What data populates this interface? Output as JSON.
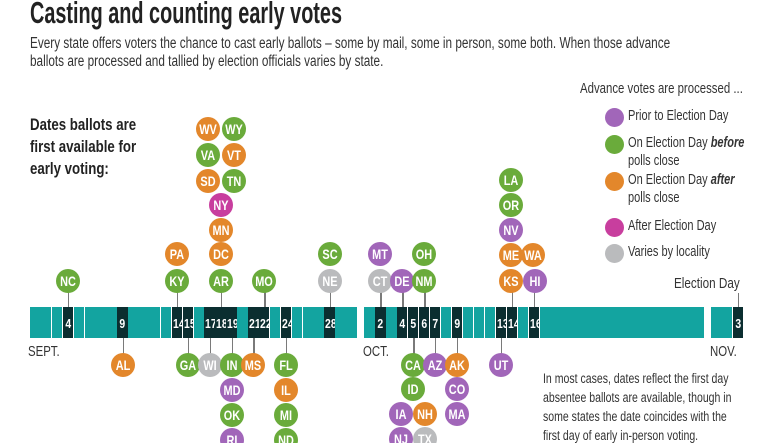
{
  "title": "Casting and counting early votes",
  "subtitle_lines": [
    "Every state offers voters the chance to cast early ballots – some by mail, some in person, some both. When those advance",
    "ballots are processed and tallied by election officials varies by state."
  ],
  "intro_lines": [
    "Dates ballots are",
    "first available for",
    "early voting:"
  ],
  "legend": {
    "title": "Advance votes are processed ...",
    "items": [
      {
        "key": "prior",
        "label_lines": [
          "Prior to Election Day"
        ],
        "color": "#a166b9"
      },
      {
        "key": "before",
        "label_lines": [
          "On Election Day before",
          "polls close"
        ],
        "emphasis": "before",
        "color": "#6aab3b"
      },
      {
        "key": "after",
        "label_lines": [
          "On Election Day after",
          "polls close"
        ],
        "emphasis": "after",
        "color": "#e3872b"
      },
      {
        "key": "afterday",
        "label_lines": [
          "After Election Day"
        ],
        "color": "#c83e9e"
      },
      {
        "key": "varies",
        "label_lines": [
          "Varies by locality"
        ],
        "color": "#babbbd"
      }
    ]
  },
  "timeline": {
    "months": [
      {
        "label": "SEPT.",
        "days": 30,
        "marked": [
          4,
          9,
          14,
          15,
          17,
          18,
          19,
          21,
          22,
          24,
          28
        ]
      },
      {
        "label": "OCT.",
        "days": 31,
        "marked": [
          2,
          4,
          5,
          6,
          7,
          9,
          13,
          14,
          16
        ]
      },
      {
        "label": "NOV.",
        "days": 3,
        "marked": [
          3
        ]
      }
    ],
    "election_day_label": "Election Day"
  },
  "states": [
    {
      "code": "NC",
      "cat": "before",
      "month": "SEPT.",
      "day": 4
    },
    {
      "code": "AL",
      "cat": "after",
      "month": "SEPT.",
      "day": 9
    },
    {
      "code": "KY",
      "cat": "before",
      "month": "SEPT.",
      "day": 14
    },
    {
      "code": "PA",
      "cat": "after",
      "month": "SEPT.",
      "day": 14
    },
    {
      "code": "GA",
      "cat": "before",
      "month": "SEPT.",
      "day": 15
    },
    {
      "code": "WI",
      "cat": "varies",
      "month": "SEPT.",
      "day": 17
    },
    {
      "code": "AR",
      "cat": "before",
      "month": "SEPT.",
      "day": 18
    },
    {
      "code": "DC",
      "cat": "after",
      "month": "SEPT.",
      "day": 18
    },
    {
      "code": "MN",
      "cat": "after",
      "month": "SEPT.",
      "day": 18
    },
    {
      "code": "NY",
      "cat": "afterday",
      "month": "SEPT.",
      "day": 18
    },
    {
      "code": "SD",
      "cat": "after",
      "month": "SEPT.",
      "day": 18
    },
    {
      "code": "TN",
      "cat": "before",
      "month": "SEPT.",
      "day": 18
    },
    {
      "code": "VA",
      "cat": "before",
      "month": "SEPT.",
      "day": 18
    },
    {
      "code": "VT",
      "cat": "after",
      "month": "SEPT.",
      "day": 18
    },
    {
      "code": "WV",
      "cat": "after",
      "month": "SEPT.",
      "day": 18
    },
    {
      "code": "WY",
      "cat": "before",
      "month": "SEPT.",
      "day": 18
    },
    {
      "code": "IN",
      "cat": "before",
      "month": "SEPT.",
      "day": 19
    },
    {
      "code": "MD",
      "cat": "prior",
      "month": "SEPT.",
      "day": 19
    },
    {
      "code": "OK",
      "cat": "before",
      "month": "SEPT.",
      "day": 19
    },
    {
      "code": "RI",
      "cat": "prior",
      "month": "SEPT.",
      "day": 19
    },
    {
      "code": "MS",
      "cat": "after",
      "month": "SEPT.",
      "day": 21
    },
    {
      "code": "MO",
      "cat": "before",
      "month": "SEPT.",
      "day": 22
    },
    {
      "code": "FL",
      "cat": "before",
      "month": "SEPT.",
      "day": 24
    },
    {
      "code": "IL",
      "cat": "after",
      "month": "SEPT.",
      "day": 24
    },
    {
      "code": "MI",
      "cat": "before",
      "month": "SEPT.",
      "day": 24
    },
    {
      "code": "ND",
      "cat": "before",
      "month": "SEPT.",
      "day": 24
    },
    {
      "code": "NE",
      "cat": "varies",
      "month": "SEPT.",
      "day": 28
    },
    {
      "code": "SC",
      "cat": "before",
      "month": "SEPT.",
      "day": 28
    },
    {
      "code": "CT",
      "cat": "varies",
      "month": "OCT.",
      "day": 2
    },
    {
      "code": "MT",
      "cat": "prior",
      "month": "OCT.",
      "day": 2
    },
    {
      "code": "DE",
      "cat": "prior",
      "month": "OCT.",
      "day": 4
    },
    {
      "code": "CA",
      "cat": "before",
      "month": "OCT.",
      "day": 5
    },
    {
      "code": "ID",
      "cat": "before",
      "month": "OCT.",
      "day": 5
    },
    {
      "code": "IA",
      "cat": "prior",
      "month": "OCT.",
      "day": 5
    },
    {
      "code": "NH",
      "cat": "after",
      "month": "OCT.",
      "day": 5
    },
    {
      "code": "NJ",
      "cat": "prior",
      "month": "OCT.",
      "day": 5
    },
    {
      "code": "TX",
      "cat": "varies",
      "month": "OCT.",
      "day": 5
    },
    {
      "code": "NM",
      "cat": "before",
      "month": "OCT.",
      "day": 6
    },
    {
      "code": "OH",
      "cat": "before",
      "month": "OCT.",
      "day": 6
    },
    {
      "code": "AZ",
      "cat": "prior",
      "month": "OCT.",
      "day": 7
    },
    {
      "code": "AK",
      "cat": "after",
      "month": "OCT.",
      "day": 9
    },
    {
      "code": "CO",
      "cat": "prior",
      "month": "OCT.",
      "day": 9
    },
    {
      "code": "MA",
      "cat": "prior",
      "month": "OCT.",
      "day": 9
    },
    {
      "code": "UT",
      "cat": "prior",
      "month": "OCT.",
      "day": 13
    },
    {
      "code": "KS",
      "cat": "after",
      "month": "OCT.",
      "day": 14
    },
    {
      "code": "ME",
      "cat": "after",
      "month": "OCT.",
      "day": 14
    },
    {
      "code": "NV",
      "cat": "prior",
      "month": "OCT.",
      "day": 14
    },
    {
      "code": "OR",
      "cat": "before",
      "month": "OCT.",
      "day": 14
    },
    {
      "code": "LA",
      "cat": "before",
      "month": "OCT.",
      "day": 14
    },
    {
      "code": "HI",
      "cat": "prior",
      "month": "OCT.",
      "day": 16
    },
    {
      "code": "WA",
      "cat": "after",
      "month": "OCT.",
      "day": 16
    }
  ],
  "note_lines": [
    "In most cases, dates reflect the first day",
    "absentee ballots are available, though in",
    "some states the date coincides with the",
    "first day of early in-person voting."
  ]
}
